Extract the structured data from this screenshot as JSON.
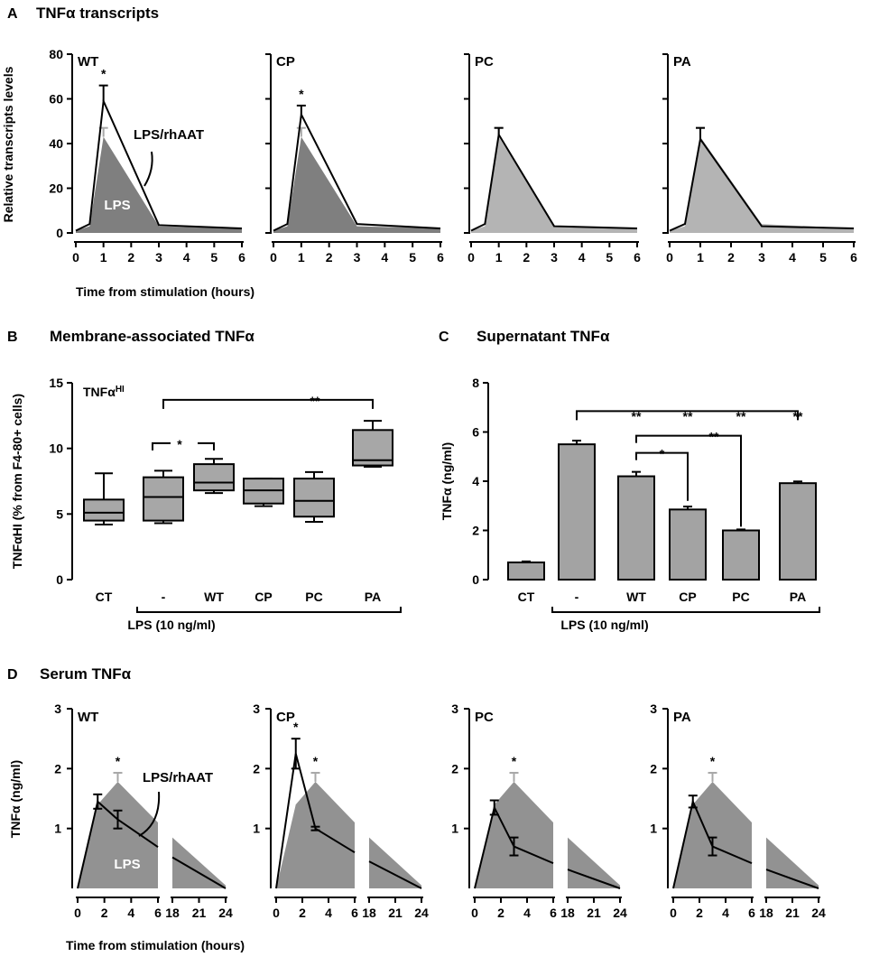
{
  "panels": {
    "A": {
      "letter": "A",
      "title": "TNFα transcripts"
    },
    "B": {
      "letter": "B",
      "title": "Membrane-associated TNFα"
    },
    "C": {
      "letter": "C",
      "title": "Supernatant TNFα"
    },
    "D": {
      "letter": "D",
      "title": "Serum TNFα"
    }
  },
  "colors": {
    "dark_area": "#7f7f7f",
    "light_area": "#b4b4b4",
    "box_fill": "#a7a7a7",
    "bar_fill": "#a3a3a3",
    "line": "#000000",
    "light_err": "#a8a8a8"
  },
  "chart_data": [
    {
      "id": "A",
      "type": "area",
      "title": "TNFα transcripts",
      "ylabel": "Relative transcripts levels",
      "xlabel": "Time from stimulation (hours)",
      "ylim": [
        0,
        80
      ],
      "yticks": [
        0,
        20,
        40,
        60,
        80
      ],
      "xlim": [
        0,
        6
      ],
      "xticks": [
        0,
        1,
        2,
        3,
        4,
        5,
        6
      ],
      "legend_labels": {
        "area": "LPS",
        "line": "LPS/rhAAT"
      },
      "subplots": [
        {
          "name": "WT",
          "lps": {
            "x": [
              0,
              0.5,
              1,
              3,
              6
            ],
            "y": [
              1,
              3,
              43,
              3,
              2
            ],
            "err": [
              0,
              0,
              4,
              0,
              0
            ]
          },
          "line": {
            "x": [
              0,
              0.5,
              1,
              3,
              6
            ],
            "y": [
              1,
              4,
              59,
              3.5,
              2
            ],
            "err": [
              0,
              0,
              7,
              0,
              0
            ]
          },
          "area_shade": "dark",
          "star": "*",
          "star_x": 1
        },
        {
          "name": "CP",
          "lps": {
            "x": [
              0,
              0.5,
              1,
              3,
              6
            ],
            "y": [
              1,
              3,
              43,
              3,
              2
            ],
            "err": [
              0,
              0,
              4,
              0,
              0
            ]
          },
          "line": {
            "x": [
              0,
              0.5,
              1,
              3,
              6
            ],
            "y": [
              1,
              4,
              53,
              4,
              2
            ],
            "err": [
              0,
              0,
              4,
              0,
              0
            ]
          },
          "area_shade": "dark",
          "star": "*",
          "star_x": 1
        },
        {
          "name": "PC",
          "lps": {
            "x": [
              0,
              0.5,
              1,
              3,
              6
            ],
            "y": [
              1,
              3,
              43,
              3,
              2
            ],
            "err": [
              0,
              0,
              4,
              0,
              0
            ]
          },
          "line": {
            "x": [
              0,
              0.5,
              1,
              3,
              6
            ],
            "y": [
              1,
              4,
              44,
              3,
              2
            ],
            "err": [
              0,
              0,
              3,
              0,
              0
            ]
          },
          "area_shade": "light",
          "star": "",
          "star_x": 1
        },
        {
          "name": "PA",
          "lps": {
            "x": [
              0,
              0.5,
              1,
              3,
              6
            ],
            "y": [
              1,
              3,
              43,
              4,
              2
            ],
            "err": [
              0,
              0,
              4,
              0,
              0
            ]
          },
          "line": {
            "x": [
              0,
              0.5,
              1,
              3,
              6
            ],
            "y": [
              1,
              4,
              42,
              3,
              2
            ],
            "err": [
              0,
              0,
              5,
              0,
              0
            ]
          },
          "area_shade": "light",
          "star": "",
          "star_x": 1
        }
      ]
    },
    {
      "id": "B",
      "type": "box",
      "title": "Membrane-associated TNFα",
      "ylabel": "TNFαHI (% from F4-80+ cells)",
      "ylim": [
        0,
        15
      ],
      "yticks": [
        0,
        5,
        10,
        15
      ],
      "inset_label": "TNFα",
      "inset_label_sup": "HI",
      "categories": [
        "CT",
        "-",
        "WT",
        "CP",
        "PC",
        "PA"
      ],
      "group_label": "LPS (10 ng/ml)",
      "boxes": [
        {
          "min": 4.2,
          "q1": 4.5,
          "median": 5.1,
          "q3": 6.1,
          "max": 8.1
        },
        {
          "min": 4.3,
          "q1": 4.5,
          "median": 6.3,
          "q3": 7.8,
          "max": 8.3
        },
        {
          "min": 6.6,
          "q1": 6.8,
          "median": 7.4,
          "q3": 8.8,
          "max": 9.2
        },
        {
          "min": 5.6,
          "q1": 5.8,
          "median": 6.8,
          "q3": 7.7,
          "max": 7.7
        },
        {
          "min": 4.4,
          "q1": 4.8,
          "median": 6.0,
          "q3": 7.7,
          "max": 8.2
        },
        {
          "min": 8.6,
          "q1": 8.7,
          "median": 9.1,
          "q3": 11.4,
          "max": 12.1
        }
      ],
      "brackets": [
        {
          "from": 1,
          "to": 5,
          "y": 13.7,
          "label": "**"
        },
        {
          "from": 1,
          "to": 2,
          "y": 10.4,
          "label": "*"
        }
      ]
    },
    {
      "id": "C",
      "type": "bar",
      "title": "Supernatant TNFα",
      "ylabel": "TNFα (ng/ml)",
      "ylim": [
        0,
        8
      ],
      "yticks": [
        0,
        2,
        4,
        6,
        8
      ],
      "categories": [
        "CT",
        "-",
        "WT",
        "CP",
        "PC",
        "PA"
      ],
      "group_label": "LPS (10 ng/ml)",
      "values": [
        0.7,
        5.5,
        4.2,
        2.85,
        2.0,
        3.92
      ],
      "errors": [
        0.04,
        0.15,
        0.18,
        0.12,
        0.04,
        0.07
      ],
      "bar_stars": [
        "",
        "",
        "**",
        "**",
        "**",
        "**"
      ],
      "brackets": [
        {
          "type": "top",
          "from": 1,
          "to": 5,
          "y": 6.85,
          "label": ""
        },
        {
          "type": "down",
          "from": 2,
          "to": 3,
          "y": 5.15,
          "end_y": 3.2,
          "label": "*"
        },
        {
          "type": "down",
          "from": 2,
          "to": 4,
          "y": 5.85,
          "end_y": 2.15,
          "label": "**"
        }
      ]
    },
    {
      "id": "D",
      "type": "area",
      "title": "Serum TNFα",
      "ylabel": "TNFα (ng/ml)",
      "xlabel": "Time from stimulation (hours)",
      "ylim": [
        0,
        3
      ],
      "yticks": [
        1,
        2,
        3
      ],
      "xticks_left": [
        0,
        2,
        4,
        6
      ],
      "xticks_right": [
        18,
        21,
        24
      ],
      "legend_labels": {
        "area": "LPS",
        "line": "LPS/rhAAT"
      },
      "lps": {
        "x": [
          0,
          1.5,
          3,
          6,
          18,
          24
        ],
        "y": [
          0,
          1.4,
          1.78,
          1.1,
          0.85,
          0.05
        ],
        "err_x": 3,
        "err": 0.15,
        "star": "*"
      },
      "subplots": [
        {
          "name": "WT",
          "line": {
            "x": [
              0,
              1.5,
              3,
              24
            ],
            "y": [
              0,
              1.45,
              1.15,
              0
            ],
            "err": [
              0,
              0.12,
              0.15,
              0
            ]
          },
          "stars": []
        },
        {
          "name": "CP",
          "line": {
            "x": [
              0,
              1.5,
              3,
              24
            ],
            "y": [
              0,
              2.25,
              1.0,
              0
            ],
            "err": [
              0,
              0.25,
              0.03,
              0
            ]
          },
          "stars": [
            {
              "x": 1.5,
              "label": "*"
            }
          ]
        },
        {
          "name": "PC",
          "line": {
            "x": [
              0,
              1.5,
              3,
              24
            ],
            "y": [
              0,
              1.35,
              0.7,
              0
            ],
            "err": [
              0,
              0.12,
              0.15,
              0
            ]
          },
          "stars": []
        },
        {
          "name": "PA",
          "line": {
            "x": [
              0,
              1.5,
              3,
              24
            ],
            "y": [
              0,
              1.45,
              0.7,
              0
            ],
            "err": [
              0,
              0.1,
              0.15,
              0
            ]
          },
          "stars": []
        }
      ]
    }
  ]
}
